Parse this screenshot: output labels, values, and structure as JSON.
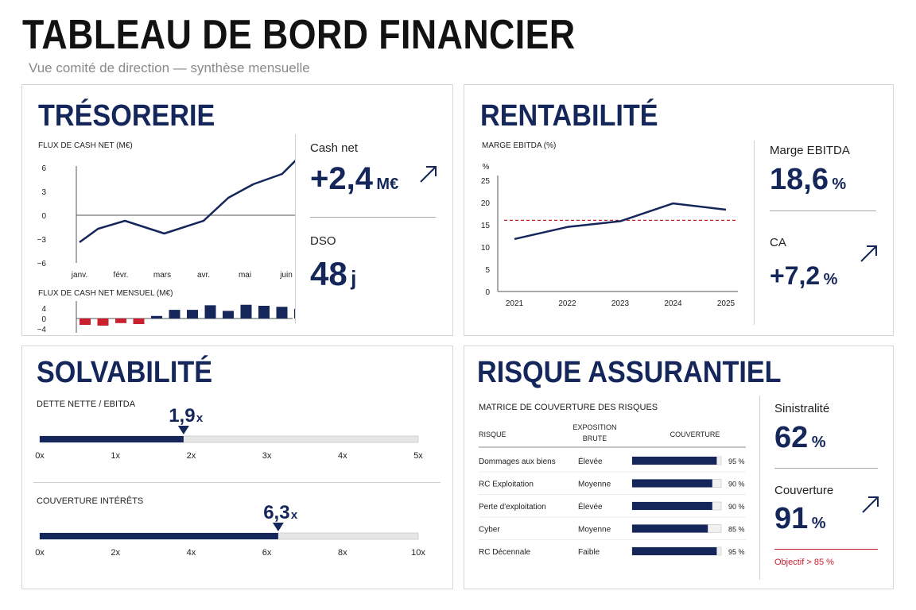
{
  "header": {
    "title": "TABLEAU DE BORD FINANCIER",
    "subtitle": "Vue comité de direction — synthèse mensuelle"
  },
  "colors": {
    "navy": "#15275a",
    "red": "#c8202e",
    "grey": "#e6e6e6"
  },
  "tresorerie": {
    "title": "TRÉSORERIE",
    "kpis": [
      {
        "label": "Cash net",
        "value": "+2,4",
        "unit": "M€",
        "icon": "arrow-up-right-icon"
      },
      {
        "label": "DSO",
        "value": "48",
        "unit": "j"
      }
    ]
  },
  "rentabilite": {
    "title": "RENTABILITÉ",
    "kpis": [
      {
        "label": "Marge EBITDA",
        "value": "18,6",
        "unit": "%"
      },
      {
        "label": "CA",
        "value": "+7,2",
        "unit": "%",
        "icon": "arrow-up-right-icon"
      }
    ]
  },
  "solvabilite": {
    "title": "SOLVABILITÉ"
  },
  "risque": {
    "title": "RISQUE ASSURANTIEL",
    "kpis": [
      {
        "label": "Sinistralité",
        "value": "62",
        "unit": "%"
      },
      {
        "label": "Couverture",
        "value": "91",
        "unit": "%",
        "icon": "arrow-up-right-icon"
      }
    ],
    "objective": "Objectif > 85 %"
  },
  "chart_data": [
    {
      "type": "line",
      "title": "FLUX DE CASH NET (M€)",
      "categories": [
        "janv.",
        "févr.",
        "mars",
        "avr.",
        "mai",
        "juin"
      ],
      "y_ticks": [
        "6",
        "3",
        "0",
        "−3",
        "−6"
      ],
      "ylim": [
        -6,
        6
      ],
      "x": [
        0,
        0.45,
        1.1,
        2.05,
        3.0,
        3.6,
        4.2,
        4.9,
        5.4
      ],
      "values": [
        -3.4,
        -1.7,
        -0.7,
        -2.3,
        -0.7,
        2.2,
        3.9,
        5.2,
        7.8
      ],
      "grid": false
    },
    {
      "type": "bar",
      "title": "FLUX DE CASH NET MENSUEL (M€)",
      "y_ticks": [
        "4",
        "0",
        "−4"
      ],
      "ylim": [
        -4,
        4
      ],
      "values": [
        -2.5,
        -2.8,
        -1.8,
        -2.2,
        1.0,
        3.4,
        3.4,
        5.2,
        3.0,
        5.4,
        5.0,
        4.6,
        3.8
      ],
      "positive_color": "#15275a",
      "negative_color": "#c8202e"
    },
    {
      "type": "line",
      "title": "MARGE EBITDA (%)",
      "unit_label": "%",
      "categories": [
        "2021",
        "2022",
        "2023",
        "2024",
        "2025"
      ],
      "y_ticks": [
        "25",
        "20",
        "15",
        "10",
        "5",
        "0"
      ],
      "ylim": [
        0,
        25
      ],
      "values": [
        11.8,
        14.5,
        15.8,
        19.8,
        18.4
      ],
      "reference_line": 16.0,
      "grid": false
    },
    {
      "type": "bar",
      "title": "DETTE NETTE / EBITDA",
      "orientation": "horizontal-gauge",
      "value": 1.9,
      "value_label": "1,9",
      "unit": "x",
      "xlim": [
        0,
        5
      ],
      "ticks": [
        "0x",
        "1x",
        "2x",
        "3x",
        "4x",
        "5x"
      ]
    },
    {
      "type": "bar",
      "title": "COUVERTURE INTÉRÊTS",
      "orientation": "horizontal-gauge",
      "value": 6.3,
      "value_label": "6,3",
      "unit": "x",
      "xlim": [
        0,
        10
      ],
      "ticks": [
        "0x",
        "2x",
        "4x",
        "6x",
        "8x",
        "10x"
      ]
    },
    {
      "type": "table",
      "title": "MATRICE DE COUVERTURE DES RISQUES",
      "columns": [
        "RISQUE",
        "EXPOSITION BRUTE",
        "COUVERTURE"
      ],
      "rows": [
        {
          "risk": "Dommages aux biens",
          "exposure": "Élevée",
          "coverage": 95,
          "label": "95 %"
        },
        {
          "risk": "RC Exploitation",
          "exposure": "Moyenne",
          "coverage": 90,
          "label": "90 %"
        },
        {
          "risk": "Perte d'exploitation",
          "exposure": "Élevée",
          "coverage": 90,
          "label": "90 %"
        },
        {
          "risk": "Cyber",
          "exposure": "Moyenne",
          "coverage": 85,
          "label": "85 %"
        },
        {
          "risk": "RC Décennale",
          "exposure": "Faible",
          "coverage": 95,
          "label": "95 %"
        }
      ]
    }
  ]
}
